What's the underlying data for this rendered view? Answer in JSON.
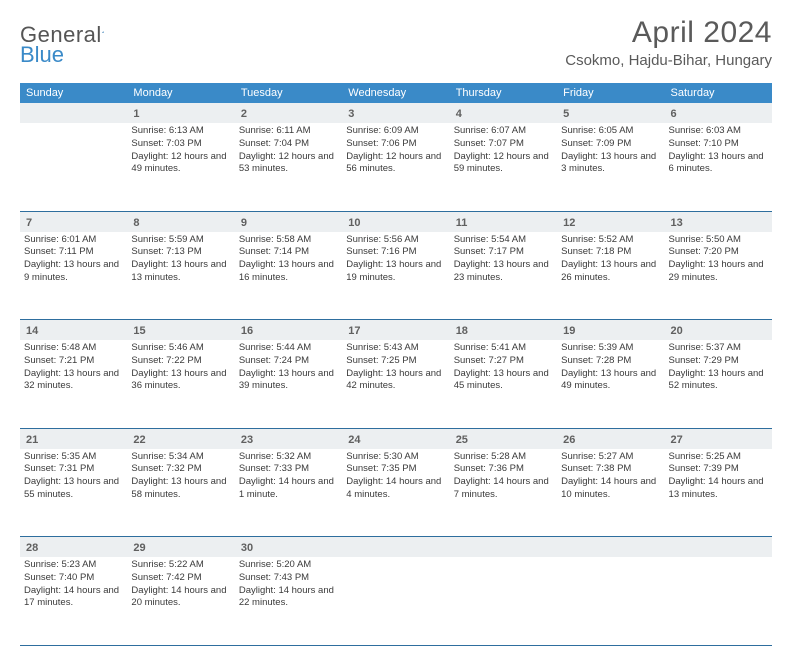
{
  "header": {
    "logo_text_a": "General",
    "logo_text_b": "Blue",
    "month_title": "April 2024",
    "location": "Csokmo, Hajdu-Bihar, Hungary"
  },
  "style": {
    "accent": "#3a8ac8",
    "daynum_bg": "#eceff1",
    "text": "#3a3a3a",
    "row_border": "#2e6e9e",
    "title_color": "#5a5a5a"
  },
  "calendar": {
    "day_headers": [
      "Sunday",
      "Monday",
      "Tuesday",
      "Wednesday",
      "Thursday",
      "Friday",
      "Saturday"
    ],
    "weeks": [
      {
        "nums": [
          "",
          "1",
          "2",
          "3",
          "4",
          "5",
          "6"
        ],
        "cells": [
          null,
          {
            "sunrise": "6:13 AM",
            "sunset": "7:03 PM",
            "daylight": "12 hours and 49 minutes."
          },
          {
            "sunrise": "6:11 AM",
            "sunset": "7:04 PM",
            "daylight": "12 hours and 53 minutes."
          },
          {
            "sunrise": "6:09 AM",
            "sunset": "7:06 PM",
            "daylight": "12 hours and 56 minutes."
          },
          {
            "sunrise": "6:07 AM",
            "sunset": "7:07 PM",
            "daylight": "12 hours and 59 minutes."
          },
          {
            "sunrise": "6:05 AM",
            "sunset": "7:09 PM",
            "daylight": "13 hours and 3 minutes."
          },
          {
            "sunrise": "6:03 AM",
            "sunset": "7:10 PM",
            "daylight": "13 hours and 6 minutes."
          }
        ]
      },
      {
        "nums": [
          "7",
          "8",
          "9",
          "10",
          "11",
          "12",
          "13"
        ],
        "cells": [
          {
            "sunrise": "6:01 AM",
            "sunset": "7:11 PM",
            "daylight": "13 hours and 9 minutes."
          },
          {
            "sunrise": "5:59 AM",
            "sunset": "7:13 PM",
            "daylight": "13 hours and 13 minutes."
          },
          {
            "sunrise": "5:58 AM",
            "sunset": "7:14 PM",
            "daylight": "13 hours and 16 minutes."
          },
          {
            "sunrise": "5:56 AM",
            "sunset": "7:16 PM",
            "daylight": "13 hours and 19 minutes."
          },
          {
            "sunrise": "5:54 AM",
            "sunset": "7:17 PM",
            "daylight": "13 hours and 23 minutes."
          },
          {
            "sunrise": "5:52 AM",
            "sunset": "7:18 PM",
            "daylight": "13 hours and 26 minutes."
          },
          {
            "sunrise": "5:50 AM",
            "sunset": "7:20 PM",
            "daylight": "13 hours and 29 minutes."
          }
        ]
      },
      {
        "nums": [
          "14",
          "15",
          "16",
          "17",
          "18",
          "19",
          "20"
        ],
        "cells": [
          {
            "sunrise": "5:48 AM",
            "sunset": "7:21 PM",
            "daylight": "13 hours and 32 minutes."
          },
          {
            "sunrise": "5:46 AM",
            "sunset": "7:22 PM",
            "daylight": "13 hours and 36 minutes."
          },
          {
            "sunrise": "5:44 AM",
            "sunset": "7:24 PM",
            "daylight": "13 hours and 39 minutes."
          },
          {
            "sunrise": "5:43 AM",
            "sunset": "7:25 PM",
            "daylight": "13 hours and 42 minutes."
          },
          {
            "sunrise": "5:41 AM",
            "sunset": "7:27 PM",
            "daylight": "13 hours and 45 minutes."
          },
          {
            "sunrise": "5:39 AM",
            "sunset": "7:28 PM",
            "daylight": "13 hours and 49 minutes."
          },
          {
            "sunrise": "5:37 AM",
            "sunset": "7:29 PM",
            "daylight": "13 hours and 52 minutes."
          }
        ]
      },
      {
        "nums": [
          "21",
          "22",
          "23",
          "24",
          "25",
          "26",
          "27"
        ],
        "cells": [
          {
            "sunrise": "5:35 AM",
            "sunset": "7:31 PM",
            "daylight": "13 hours and 55 minutes."
          },
          {
            "sunrise": "5:34 AM",
            "sunset": "7:32 PM",
            "daylight": "13 hours and 58 minutes."
          },
          {
            "sunrise": "5:32 AM",
            "sunset": "7:33 PM",
            "daylight": "14 hours and 1 minute."
          },
          {
            "sunrise": "5:30 AM",
            "sunset": "7:35 PM",
            "daylight": "14 hours and 4 minutes."
          },
          {
            "sunrise": "5:28 AM",
            "sunset": "7:36 PM",
            "daylight": "14 hours and 7 minutes."
          },
          {
            "sunrise": "5:27 AM",
            "sunset": "7:38 PM",
            "daylight": "14 hours and 10 minutes."
          },
          {
            "sunrise": "5:25 AM",
            "sunset": "7:39 PM",
            "daylight": "14 hours and 13 minutes."
          }
        ]
      },
      {
        "nums": [
          "28",
          "29",
          "30",
          "",
          "",
          "",
          ""
        ],
        "cells": [
          {
            "sunrise": "5:23 AM",
            "sunset": "7:40 PM",
            "daylight": "14 hours and 17 minutes."
          },
          {
            "sunrise": "5:22 AM",
            "sunset": "7:42 PM",
            "daylight": "14 hours and 20 minutes."
          },
          {
            "sunrise": "5:20 AM",
            "sunset": "7:43 PM",
            "daylight": "14 hours and 22 minutes."
          },
          null,
          null,
          null,
          null
        ]
      }
    ]
  },
  "labels": {
    "sunrise_prefix": "Sunrise: ",
    "sunset_prefix": "Sunset: ",
    "daylight_prefix": "Daylight: "
  }
}
